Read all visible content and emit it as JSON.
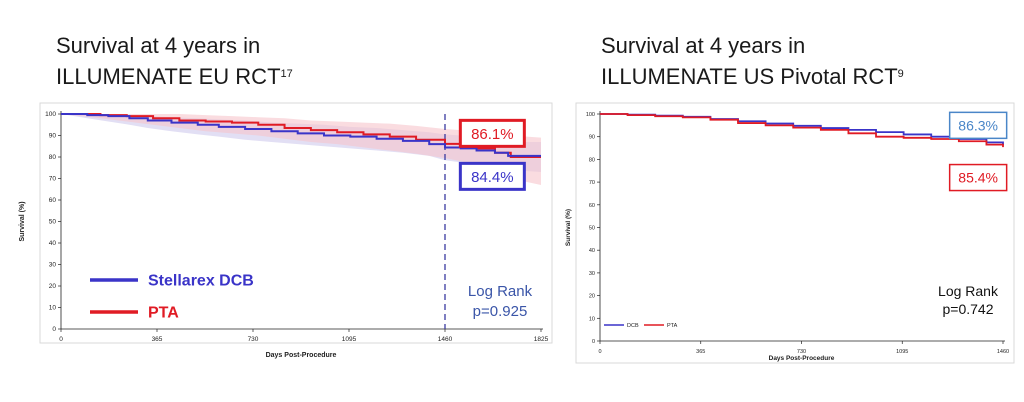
{
  "titles": {
    "left_line1": "Survival at 4 years in",
    "left_line2": "ILLUMENATE EU RCT",
    "left_sup": "17",
    "right_line1": "Survival at 4 years in",
    "right_line2": "ILLUMENATE US Pivotal RCT",
    "right_sup": "9"
  },
  "colors": {
    "dcb": "#3a34c8",
    "pta": "#e01b24",
    "band_pta": "#f6c4cc",
    "band_dcb": "#cfc9ec",
    "us_callout_dcb": "#4a86c8"
  },
  "chart_data": [
    {
      "type": "line",
      "xlabel": "Days Post-Procedure",
      "ylabel": "Survival (%)",
      "xlim": [
        0,
        1825
      ],
      "ylim": [
        0,
        100
      ],
      "xticks": [
        0,
        365,
        730,
        1095,
        1460,
        1825
      ],
      "yticks": [
        0,
        10,
        20,
        30,
        40,
        50,
        60,
        70,
        80,
        90,
        100
      ],
      "reference_line_x": 1460,
      "legend": {
        "position": "bottom-left",
        "size": "large"
      },
      "series": [
        {
          "name": "Stellarex DCB",
          "color": "#3a34c8",
          "x": [
            0,
            100,
            180,
            260,
            330,
            420,
            520,
            600,
            700,
            800,
            900,
            1000,
            1100,
            1200,
            1300,
            1400,
            1460,
            1520,
            1580,
            1650,
            1700,
            1825
          ],
          "y": [
            100,
            99.5,
            99,
            98,
            97,
            96,
            95,
            94,
            93,
            92,
            91,
            90,
            89.5,
            88.5,
            87.5,
            86,
            84.4,
            84,
            83,
            82,
            80.5,
            80.5
          ],
          "band_upper": [
            100,
            100,
            100,
            99.5,
            99,
            98.5,
            98,
            97.5,
            97,
            96,
            95.5,
            95,
            94,
            93.5,
            92.5,
            91.5,
            90.5,
            90,
            89,
            88,
            87,
            87
          ],
          "band_lower": [
            100,
            98,
            96.5,
            95,
            93.5,
            92,
            90.5,
            89.5,
            88,
            87,
            86,
            85,
            84,
            83,
            82,
            80.5,
            78.5,
            77.5,
            76,
            75,
            74,
            73
          ]
        },
        {
          "name": "PTA",
          "color": "#e01b24",
          "x": [
            0,
            150,
            250,
            350,
            450,
            550,
            650,
            750,
            850,
            950,
            1050,
            1150,
            1250,
            1350,
            1460,
            1520,
            1580,
            1650,
            1710,
            1825
          ],
          "y": [
            100,
            99.5,
            99,
            98,
            97,
            96.5,
            96,
            95,
            93.5,
            92.5,
            91.5,
            90.5,
            89.5,
            88,
            86.1,
            85.5,
            84,
            82,
            80,
            80
          ],
          "band_upper": [
            100,
            100,
            100,
            100,
            100,
            99.5,
            99,
            98.5,
            98,
            97,
            96.5,
            96,
            95.5,
            94.5,
            93,
            92.5,
            92,
            91,
            90,
            89
          ],
          "band_lower": [
            100,
            98,
            96.5,
            95,
            93.5,
            92,
            91,
            90,
            88.5,
            87,
            86,
            84.5,
            83,
            81.5,
            79.5,
            78,
            76,
            73,
            70,
            67
          ]
        }
      ],
      "annotations": [
        {
          "text": "86.1%",
          "color": "#e01b24",
          "x": 1640,
          "y": 91
        },
        {
          "text": "84.4%",
          "color": "#3a34c8",
          "x": 1640,
          "y": 71
        }
      ],
      "stats_text": [
        "Log Rank",
        "p=0.925"
      ]
    },
    {
      "type": "line",
      "xlabel": "Days Post-Procedure",
      "ylabel": "Survival (%)",
      "xlim": [
        0,
        1460
      ],
      "ylim": [
        0,
        100
      ],
      "xticks": [
        0,
        365,
        730,
        1095,
        1460
      ],
      "yticks": [
        0,
        10,
        20,
        30,
        40,
        50,
        60,
        70,
        80,
        90,
        100
      ],
      "legend": {
        "position": "bottom-left",
        "size": "small"
      },
      "series": [
        {
          "name": "DCB",
          "color": "#3a34c8",
          "x": [
            0,
            100,
            200,
            300,
            400,
            500,
            600,
            700,
            800,
            900,
            1000,
            1100,
            1200,
            1300,
            1400,
            1460
          ],
          "y": [
            100,
            99.7,
            99.3,
            98.8,
            97.8,
            96.8,
            95.8,
            94.8,
            93.8,
            93,
            92,
            91,
            90,
            89,
            87.5,
            86.3
          ]
        },
        {
          "name": "PTA",
          "color": "#e01b24",
          "x": [
            0,
            100,
            200,
            300,
            400,
            500,
            600,
            700,
            800,
            900,
            1000,
            1100,
            1200,
            1300,
            1400,
            1460
          ],
          "y": [
            100,
            99.5,
            99,
            98.5,
            97.5,
            96,
            95,
            94,
            93,
            91.5,
            90,
            89.5,
            89,
            88,
            86.5,
            85.4
          ]
        }
      ],
      "annotations": [
        {
          "text": "86.3%",
          "color": "#4a86c8",
          "x": 1370,
          "y": 95
        },
        {
          "text": "85.4%",
          "color": "#e01b24",
          "x": 1370,
          "y": 72
        }
      ],
      "stats_text": [
        "Log Rank",
        "p=0.742"
      ]
    }
  ]
}
